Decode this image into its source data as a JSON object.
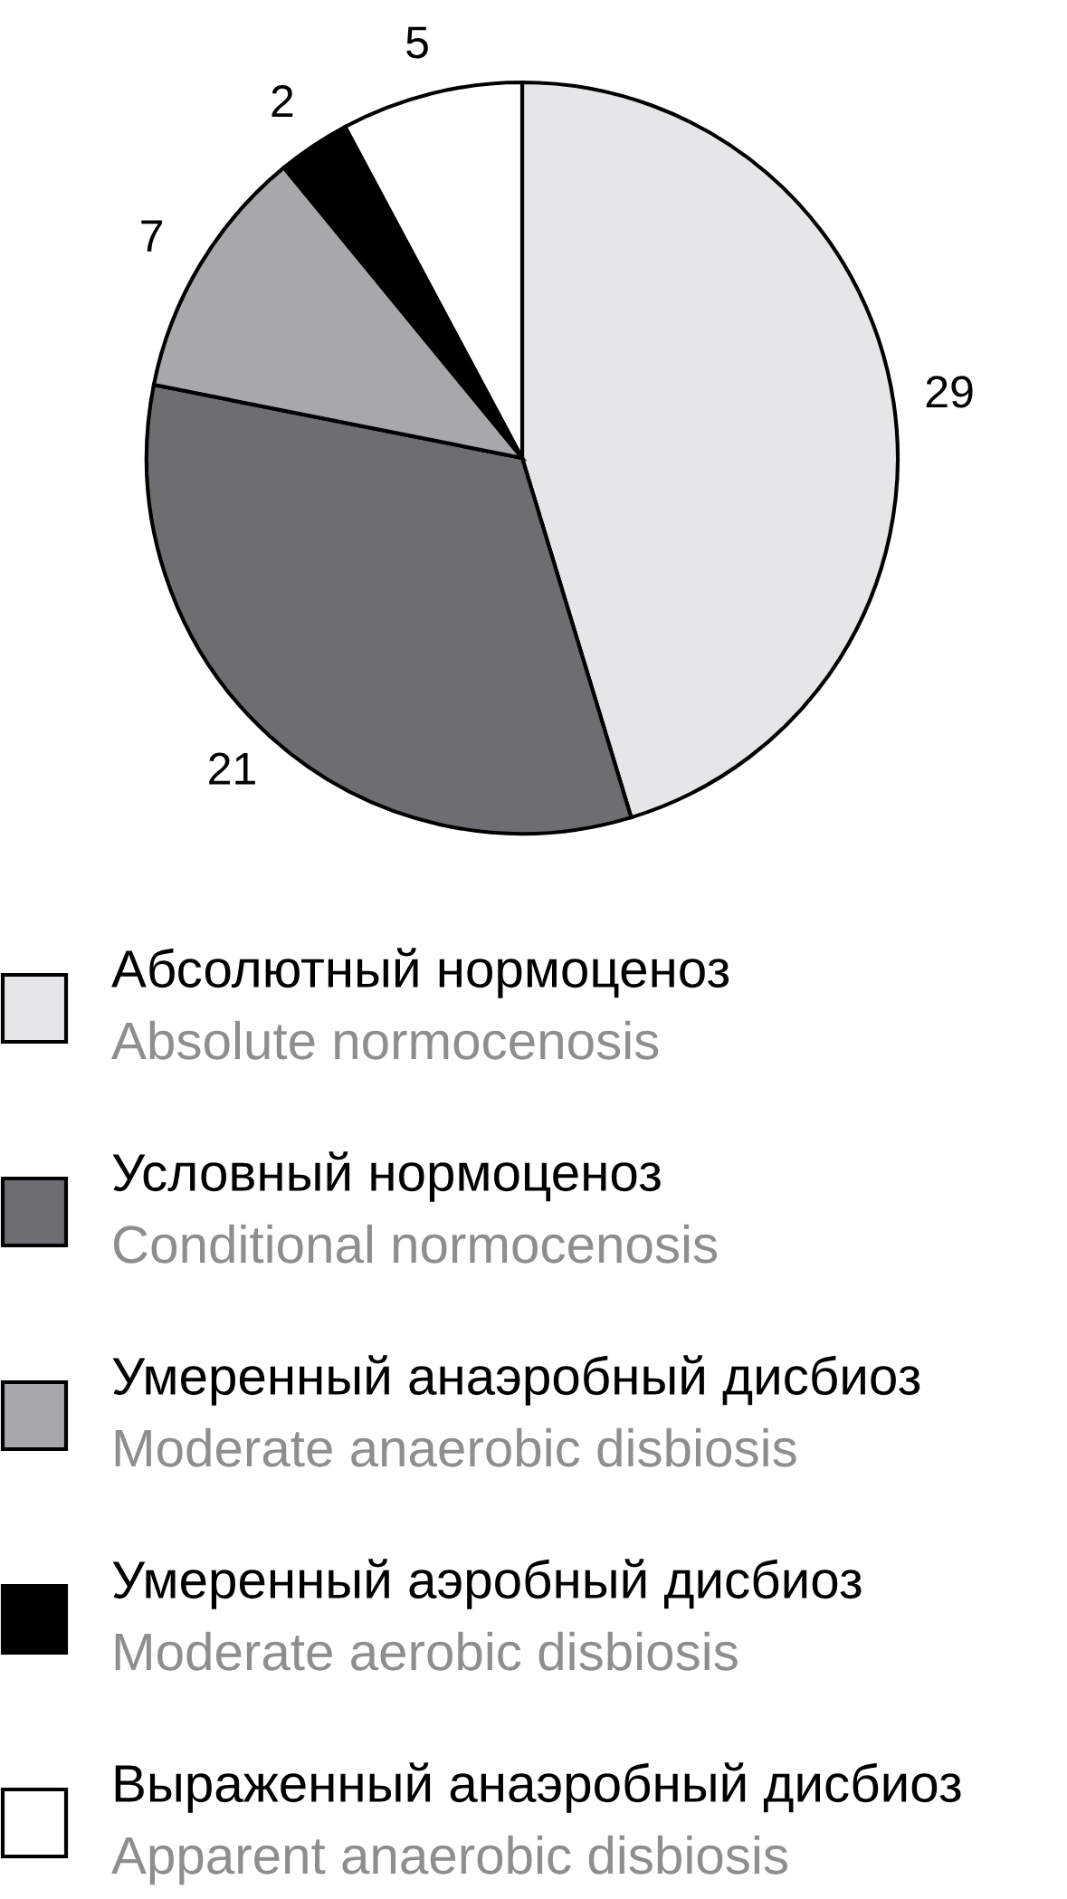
{
  "chart_data": {
    "type": "pie",
    "categories": [
      "Абсолютный нормоценоз\nAbsolute normocenosis",
      "Условный нормоценоз\nConditional normocenosis",
      "Умеренный анаэробный дисбиоз\nModerate anaerobic disbiosis",
      "Умеренный аэробный дисбиоз\nModerate aerobic disbiosis",
      "Выраженный анаэробный дисбиоз\nApparent anaerobic disbiosis"
    ],
    "values": [
      29,
      21,
      7,
      2,
      5
    ],
    "colors": [
      "#e6e6e8",
      "#6d6e72",
      "#a7a8ab",
      "#000000",
      "#ffffff"
    ],
    "data_labels": true,
    "legend": "bottom"
  }
}
